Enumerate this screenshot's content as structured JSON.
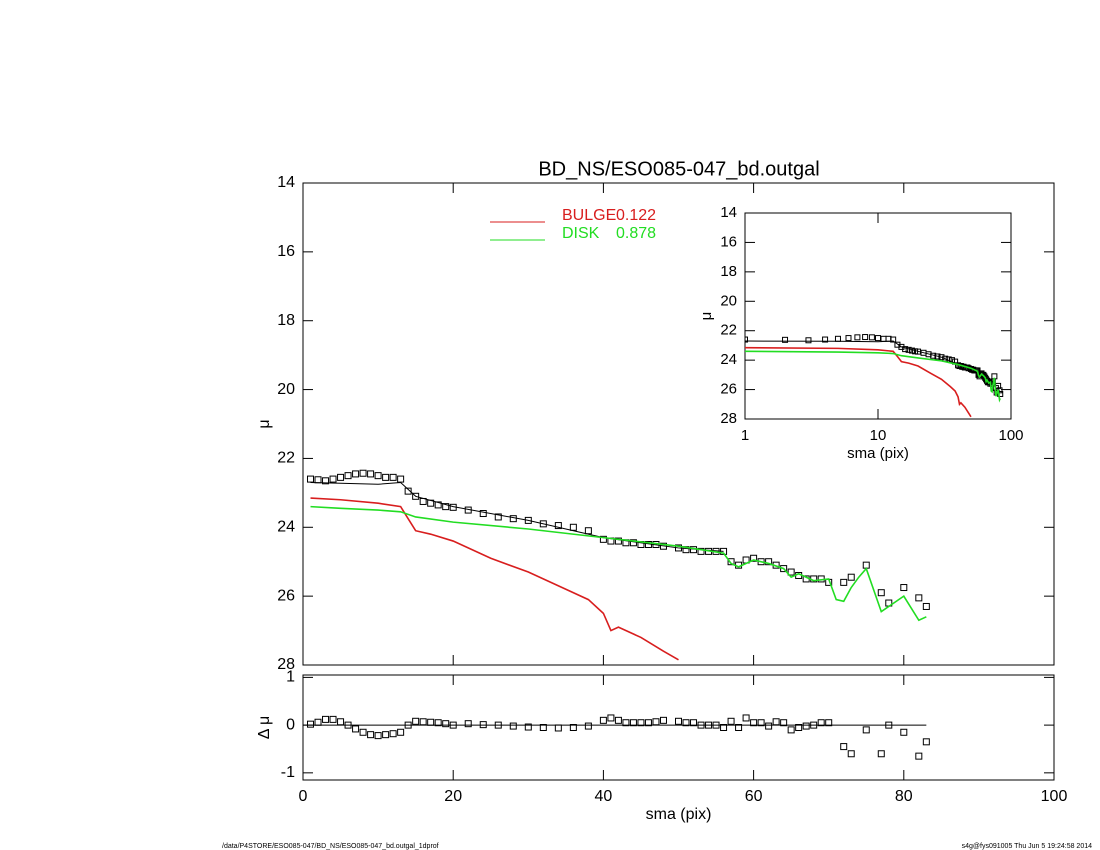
{
  "chart_data": [
    {
      "type": "line",
      "title": "BD_NS/ESO085-047_bd.outgal",
      "ylabel": "μ",
      "xlim": [
        0,
        100
      ],
      "xticks": [
        0,
        20,
        40,
        60,
        80,
        100
      ],
      "ylim": [
        28,
        14
      ],
      "yticks": [
        14,
        16,
        18,
        20,
        22,
        24,
        26,
        28
      ],
      "series": [
        {
          "marker": "square",
          "color": "#000000",
          "x": [
            1,
            2,
            3,
            4,
            5,
            6,
            7,
            8,
            9,
            10,
            11,
            12,
            13,
            14,
            15,
            16,
            17,
            18,
            19,
            20,
            22,
            24,
            26,
            28,
            30,
            32,
            34,
            36,
            38,
            40,
            41,
            42,
            43,
            44,
            45,
            46,
            47,
            48,
            50,
            51,
            52,
            53,
            54,
            55,
            56,
            57,
            58,
            59,
            60,
            61,
            62,
            63,
            64,
            65,
            66,
            67,
            68,
            69,
            70,
            72,
            73,
            75,
            77,
            78,
            80,
            82,
            83
          ],
          "values": [
            22.6,
            22.62,
            22.65,
            22.6,
            22.55,
            22.5,
            22.45,
            22.43,
            22.45,
            22.5,
            22.55,
            22.55,
            22.6,
            22.95,
            23.1,
            23.25,
            23.3,
            23.35,
            23.4,
            23.42,
            23.5,
            23.6,
            23.7,
            23.75,
            23.8,
            23.9,
            23.95,
            24.0,
            24.1,
            24.35,
            24.4,
            24.4,
            24.45,
            24.45,
            24.5,
            24.5,
            24.5,
            24.55,
            24.6,
            24.65,
            24.65,
            24.7,
            24.7,
            24.7,
            24.7,
            25.0,
            25.1,
            24.95,
            24.9,
            25.0,
            25.0,
            25.1,
            25.2,
            25.3,
            25.4,
            25.5,
            25.5,
            25.5,
            25.6,
            25.6,
            25.45,
            25.1,
            25.9,
            26.2,
            25.75,
            26.05,
            26.3
          ]
        },
        {
          "color": "#000000",
          "x": [
            1,
            5,
            10,
            13,
            15,
            20,
            30,
            40,
            50,
            56
          ],
          "values": [
            22.7,
            22.72,
            22.75,
            22.7,
            23.1,
            23.4,
            23.8,
            24.3,
            24.6,
            24.7
          ]
        },
        {
          "name": "BULGE",
          "fraction": 0.122,
          "color": "#d81e1e",
          "x": [
            1,
            5,
            10,
            13,
            14,
            15,
            17,
            20,
            25,
            30,
            35,
            38,
            40,
            41,
            42,
            45,
            48,
            50
          ],
          "values": [
            23.15,
            23.2,
            23.3,
            23.4,
            23.75,
            24.1,
            24.2,
            24.4,
            24.9,
            25.3,
            25.8,
            26.1,
            26.5,
            27.0,
            26.9,
            27.2,
            27.6,
            27.85
          ]
        },
        {
          "name": "DISK",
          "fraction": 0.878,
          "color": "#22dd22",
          "x": [
            1,
            5,
            10,
            13,
            15,
            20,
            30,
            40,
            50,
            56,
            57,
            58,
            60,
            62,
            64,
            65,
            66,
            68,
            70,
            71,
            72,
            73,
            74,
            75,
            77,
            78,
            80,
            82,
            83
          ],
          "values": [
            23.4,
            23.45,
            23.5,
            23.55,
            23.7,
            23.85,
            24.05,
            24.3,
            24.55,
            24.75,
            25.05,
            25.15,
            24.95,
            25.05,
            25.2,
            25.45,
            25.35,
            25.55,
            25.5,
            26.1,
            26.15,
            25.75,
            25.45,
            25.2,
            26.45,
            26.3,
            26.0,
            26.7,
            26.6
          ]
        }
      ]
    },
    {
      "type": "scatter",
      "ylabel": "Δ μ",
      "xlabel": "sma (pix)",
      "xlim": [
        0,
        100
      ],
      "xticks": [
        0,
        20,
        40,
        60,
        80,
        100
      ],
      "ylim": [
        -1.15,
        1.05
      ],
      "yticks": [
        -1,
        0,
        1
      ],
      "series": [
        {
          "marker": "square",
          "color": "#000000",
          "x": [
            1,
            2,
            3,
            4,
            5,
            6,
            7,
            8,
            9,
            10,
            11,
            12,
            13,
            14,
            15,
            16,
            17,
            18,
            19,
            20,
            22,
            24,
            26,
            28,
            30,
            32,
            34,
            36,
            38,
            40,
            41,
            42,
            43,
            44,
            45,
            46,
            47,
            48,
            50,
            51,
            52,
            53,
            54,
            55,
            56,
            57,
            58,
            59,
            60,
            61,
            62,
            63,
            64,
            65,
            66,
            67,
            68,
            69,
            70,
            72,
            73,
            75,
            77,
            78,
            80,
            82,
            83
          ],
          "values": [
            0.02,
            0.06,
            0.12,
            0.12,
            0.07,
            0.0,
            -0.08,
            -0.15,
            -0.2,
            -0.22,
            -0.2,
            -0.18,
            -0.15,
            0.0,
            0.08,
            0.07,
            0.06,
            0.05,
            0.03,
            0.0,
            0.03,
            0.01,
            0.0,
            -0.02,
            -0.04,
            -0.05,
            -0.06,
            -0.05,
            -0.02,
            0.1,
            0.15,
            0.1,
            0.05,
            0.05,
            0.05,
            0.05,
            0.07,
            0.1,
            0.08,
            0.05,
            0.05,
            0.0,
            0.0,
            0.0,
            -0.05,
            0.08,
            -0.05,
            0.15,
            0.05,
            0.05,
            -0.02,
            0.07,
            0.05,
            -0.1,
            -0.05,
            -0.02,
            0.0,
            0.05,
            0.05,
            -0.45,
            -0.6,
            -0.1,
            -0.6,
            0.0,
            -0.15,
            -0.65,
            -0.35
          ]
        }
      ]
    },
    {
      "type": "inset",
      "ylabel": "μ",
      "xlabel": "sma (pix)",
      "xlog": true,
      "xlim": [
        1,
        100
      ],
      "xticks": [
        1,
        10,
        100
      ],
      "ylim": [
        28,
        14
      ],
      "yticks": [
        14,
        16,
        18,
        20,
        22,
        24,
        26,
        28
      ]
    }
  ],
  "footer": {
    "left": "/data/P4STORE/ESO085-047/BD_NS/ESO085-047_bd.outgal_1dprof",
    "right": "s4g@fys091005  Thu Jun  5 19:24:58 2014"
  }
}
